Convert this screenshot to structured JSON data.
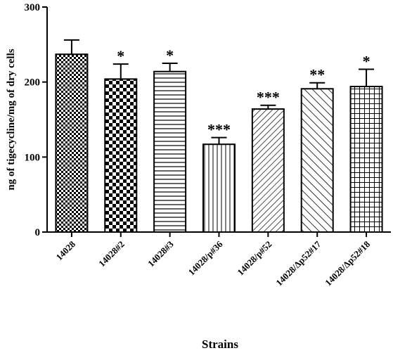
{
  "chart_data": {
    "type": "bar",
    "title": "",
    "xlabel": "Strains",
    "ylabel": "ng of tigecycline/mg of dry cells",
    "ylim": [
      0,
      300
    ],
    "yticks": [
      0,
      100,
      200,
      300
    ],
    "grid": false,
    "categories": [
      "14028",
      "14028#2",
      "14028#3",
      "14028/p#36",
      "14028/p#52",
      "14028/Δp52#17",
      "14028/Δp52#18"
    ],
    "values": [
      237,
      204,
      214,
      117,
      164,
      191,
      194
    ],
    "errors": [
      19,
      20,
      11,
      9,
      5,
      8,
      23
    ],
    "significance": [
      "",
      "*",
      "*",
      "***",
      "***",
      "**",
      "*"
    ],
    "patterns": [
      "checker-small",
      "checker-large",
      "horizontal-lines",
      "vertical-lines",
      "diagonal-dense",
      "diagonal-wide",
      "grid"
    ]
  }
}
